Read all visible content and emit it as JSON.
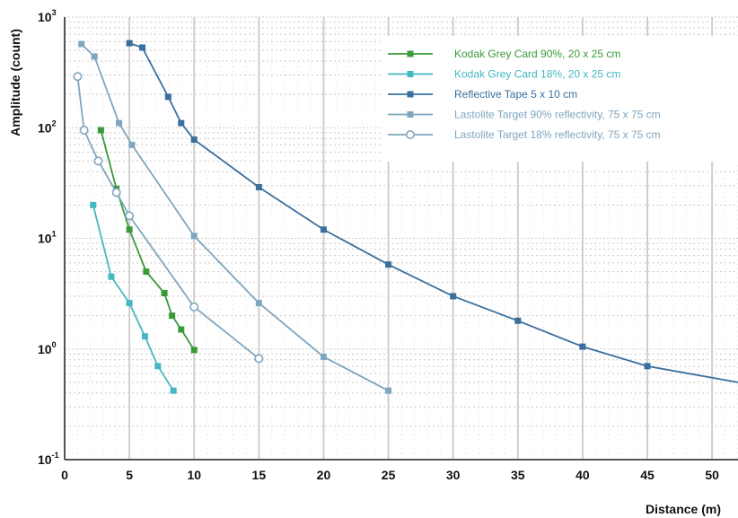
{
  "chart_data": {
    "type": "line",
    "xlabel": "Distance (m)",
    "ylabel": "Amplitude (count)",
    "xlim": [
      0,
      52
    ],
    "ylim": [
      0.1,
      1000
    ],
    "yscale": "log",
    "x_ticks": [
      "0",
      "5",
      "10",
      "15",
      "20",
      "25",
      "30",
      "35",
      "40",
      "45",
      "50"
    ],
    "y_ticks": [
      {
        "base": "10",
        "exp": "-1"
      },
      {
        "base": "10",
        "exp": "0"
      },
      {
        "base": "10",
        "exp": "1"
      },
      {
        "base": "10",
        "exp": "2"
      },
      {
        "base": "10",
        "exp": "3"
      }
    ],
    "grid": true,
    "legend_position": "top-right",
    "series": [
      {
        "name": "Kodak Grey Card 90%, 20 x 25 cm",
        "color": "#3a9a3a",
        "marker": "square",
        "x": [
          2.8,
          4.0,
          5.0,
          6.3,
          7.7,
          8.3,
          9.0,
          10.0
        ],
        "y": [
          95,
          28,
          12,
          5,
          3.2,
          2,
          1.5,
          0.98
        ]
      },
      {
        "name": "Kodak Grey Card 18%, 20 x 25 cm",
        "color": "#45b8c4",
        "marker": "square",
        "x": [
          2.2,
          3.6,
          5.0,
          6.2,
          7.2,
          8.4
        ],
        "y": [
          20,
          4.5,
          2.6,
          1.3,
          0.7,
          0.42
        ]
      },
      {
        "name": "Reflective Tape 5 x 10 cm",
        "color": "#3a6f9e",
        "marker": "square",
        "x": [
          5.0,
          6.0,
          8.0,
          9.0,
          10.0,
          15.0,
          20.0,
          25.0,
          30.0,
          35.0,
          40.0,
          45.0,
          52.0
        ],
        "y": [
          580,
          530,
          190,
          110,
          78,
          29,
          12,
          5.8,
          3.0,
          1.8,
          1.05,
          0.7,
          0.5
        ]
      },
      {
        "name": "Lastolite Target 90% reflectivity, 75 x 75 cm",
        "color": "#7fa6bf",
        "marker": "square",
        "x": [
          1.3,
          2.3,
          4.2,
          5.2,
          10.0,
          15.0,
          20.0,
          25.0
        ],
        "y": [
          570,
          440,
          110,
          70,
          10.5,
          2.6,
          0.85,
          0.42
        ]
      },
      {
        "name": "Lastolite Target 18% reflectivity, 75 x 75 cm",
        "color": "#7fa6bf",
        "marker": "circle",
        "x": [
          1.0,
          1.5,
          2.6,
          4.0,
          5.0,
          10.0,
          15.0
        ],
        "y": [
          290,
          95,
          50,
          26,
          16,
          2.4,
          0.82
        ]
      }
    ]
  }
}
